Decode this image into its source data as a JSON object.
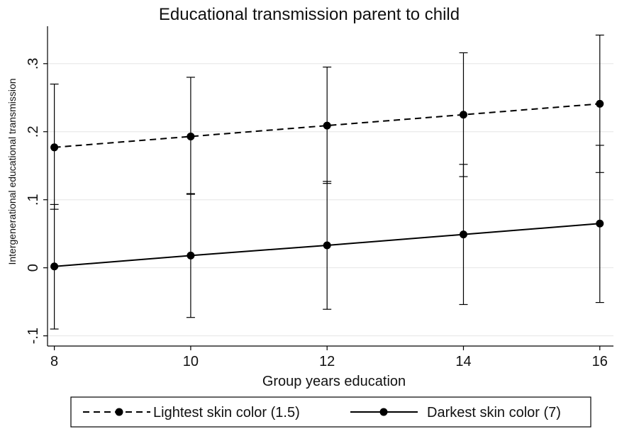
{
  "chart_data": {
    "type": "line",
    "title": "Educational transmission parent to child",
    "xlabel": "Group years education",
    "ylabel": "Intergenerational educational transmission",
    "x": [
      8,
      10,
      12,
      14,
      16
    ],
    "xticks": [
      8,
      10,
      12,
      14,
      16
    ],
    "xtick_labels": [
      "8",
      "10",
      "12",
      "14",
      "16"
    ],
    "xlim": [
      7.9,
      16.2
    ],
    "ylim": [
      -0.115,
      0.355
    ],
    "yticks": [
      -0.1,
      0,
      0.1,
      0.2,
      0.3
    ],
    "ytick_labels": [
      "-.1",
      "0",
      ".1",
      ".2",
      ".3"
    ],
    "grid": true,
    "legend_position": "bottom",
    "series": [
      {
        "name": "Lightest skin color (1.5)",
        "style": "dashed",
        "color": "#000000",
        "values": [
          0.177,
          0.193,
          0.209,
          0.225,
          0.241
        ],
        "ci_low": [
          0.086,
          0.108,
          0.124,
          0.134,
          0.14
        ],
        "ci_high": [
          0.27,
          0.28,
          0.295,
          0.316,
          0.342
        ]
      },
      {
        "name": "Darkest skin color (7)",
        "style": "solid",
        "color": "#000000",
        "values": [
          0.002,
          0.018,
          0.033,
          0.049,
          0.065
        ],
        "ci_low": [
          -0.09,
          -0.073,
          -0.061,
          -0.054,
          -0.051
        ],
        "ci_high": [
          0.093,
          0.109,
          0.127,
          0.152,
          0.18
        ]
      }
    ]
  },
  "colors": {
    "line": "#000000",
    "grid": "#e6e6e6",
    "background": "#ffffff"
  }
}
